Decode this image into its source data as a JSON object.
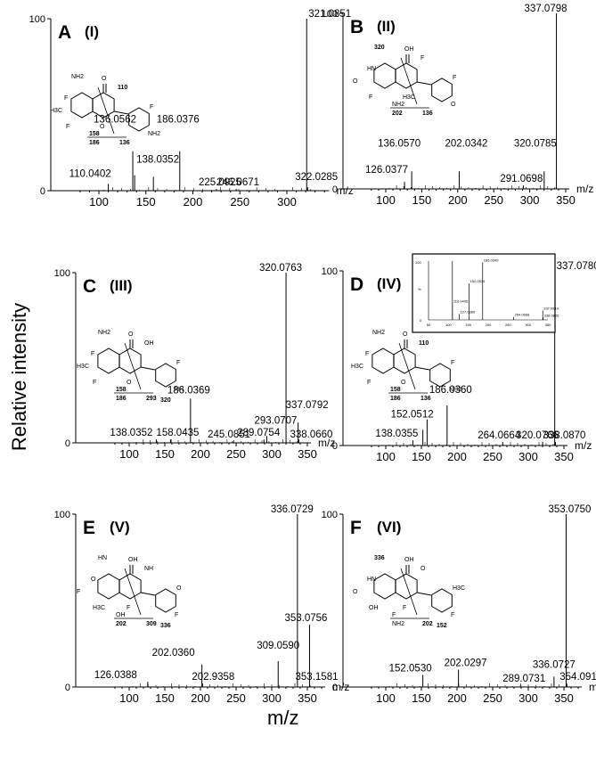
{
  "figure": {
    "y_axis_label": "Relative intensity",
    "x_axis_label": "m/z"
  },
  "chart_data": [
    {
      "type": "bar",
      "panel": "A",
      "compound": "(I)",
      "xlim": [
        75,
        345
      ],
      "ylim": [
        0,
        100
      ],
      "y_ticks": [
        0,
        100
      ],
      "x_ticks": [
        100,
        150,
        200,
        250,
        300
      ],
      "x_unit_label": "m/z",
      "peaks": [
        {
          "mz": 110.0402,
          "intensity": 4,
          "label": "110.0402"
        },
        {
          "mz": 136.0562,
          "intensity": 23,
          "label": "136.0562"
        },
        {
          "mz": 138.0352,
          "intensity": 9,
          "label": "138.0352"
        },
        {
          "mz": 158.0,
          "intensity": 8,
          "label": ""
        },
        {
          "mz": 186.0376,
          "intensity": 23,
          "label": "186.0376"
        },
        {
          "mz": 225.0925,
          "intensity": 1,
          "label": "225.0925"
        },
        {
          "mz": 246.0671,
          "intensity": 1,
          "label": "246.0671"
        },
        {
          "mz": 321.0851,
          "intensity": 100,
          "label": "321.0851"
        },
        {
          "mz": 322.0285,
          "intensity": 2,
          "label": "322.0285"
        }
      ],
      "structure_labels": [
        "NH2",
        "O",
        "F",
        "H3C",
        "F",
        "O",
        "F",
        "NH2",
        "110",
        "158",
        "186",
        "136"
      ]
    },
    {
      "type": "bar",
      "panel": "B",
      "compound": "(II)",
      "xlim": [
        75,
        355
      ],
      "ylim": [
        0,
        100
      ],
      "y_ticks": [
        0,
        100
      ],
      "x_ticks": [
        100,
        150,
        200,
        250,
        300,
        350
      ],
      "x_unit_label": "m/z",
      "peaks": [
        {
          "mz": 126.0377,
          "intensity": 4,
          "label": "126.0377"
        },
        {
          "mz": 136.057,
          "intensity": 10,
          "label": "136.0570"
        },
        {
          "mz": 202.0342,
          "intensity": 10,
          "label": "202.0342"
        },
        {
          "mz": 291.0698,
          "intensity": 2,
          "label": "291.0698"
        },
        {
          "mz": 320.0785,
          "intensity": 10,
          "label": "320.0785"
        },
        {
          "mz": 337.0798,
          "intensity": 100,
          "label": "337.0798"
        }
      ],
      "structure_labels": [
        "320",
        "OH",
        "HN",
        "O",
        "F",
        "H3C",
        "F",
        "O",
        "F",
        "NH2",
        "202",
        "136"
      ]
    },
    {
      "type": "bar",
      "panel": "C",
      "compound": "(III)",
      "xlim": [
        80,
        355
      ],
      "ylim": [
        0,
        100
      ],
      "y_ticks": [
        0,
        100
      ],
      "x_ticks": [
        100,
        150,
        200,
        250,
        300,
        350
      ],
      "x_unit_label": "m/z",
      "peaks": [
        {
          "mz": 138.0352,
          "intensity": 2,
          "label": "138.0352"
        },
        {
          "mz": 158.0435,
          "intensity": 2,
          "label": "158.0435"
        },
        {
          "mz": 186.0369,
          "intensity": 26,
          "label": "186.0369"
        },
        {
          "mz": 245.0851,
          "intensity": 1,
          "label": "245.0851"
        },
        {
          "mz": 289.0754,
          "intensity": 2,
          "label": "289.0754"
        },
        {
          "mz": 293.0707,
          "intensity": 4,
          "label": "293.0707"
        },
        {
          "mz": 320.0763,
          "intensity": 100,
          "label": "320.0763"
        },
        {
          "mz": 337.0792,
          "intensity": 12,
          "label": "337.0792"
        },
        {
          "mz": 338.066,
          "intensity": 2,
          "label": "338.0660"
        }
      ],
      "structure_labels": [
        "NH2",
        "O",
        "F",
        "H3C",
        "F",
        "O",
        "F",
        "NH",
        "OH",
        "158",
        "186",
        "293",
        "320"
      ]
    },
    {
      "type": "bar",
      "panel": "D",
      "compound": "(IV)",
      "xlim": [
        75,
        355
      ],
      "ylim": [
        0,
        100
      ],
      "y_ticks": [
        0,
        100
      ],
      "x_ticks": [
        100,
        150,
        200,
        250,
        300,
        350
      ],
      "x_unit_label": "m/z",
      "peaks": [
        {
          "mz": 138.0355,
          "intensity": 3,
          "label": "138.0355"
        },
        {
          "mz": 152.0512,
          "intensity": 9,
          "label": "152.0512"
        },
        {
          "mz": 158.0,
          "intensity": 15,
          "label": ""
        },
        {
          "mz": 186.036,
          "intensity": 23,
          "label": "186.0360"
        },
        {
          "mz": 264.0664,
          "intensity": 2,
          "label": "264.0664"
        },
        {
          "mz": 320.0766,
          "intensity": 2,
          "label": "320.0766"
        },
        {
          "mz": 337.078,
          "intensity": 100,
          "label": "337.0780"
        },
        {
          "mz": 338.087,
          "intensity": 2,
          "label": "338.0870"
        }
      ],
      "structure_labels": [
        "NH2",
        "O",
        "F",
        "H3C",
        "F",
        "O",
        "F",
        "NH2",
        "110",
        "158",
        "186",
        "136"
      ],
      "inset": {
        "xlim": [
          50,
          350
        ],
        "ylim": [
          0,
          100
        ],
        "y_ticks": [
          "100",
          "%",
          "0"
        ],
        "x_ticks": [
          50,
          100,
          150,
          200,
          250,
          300,
          350
        ],
        "peaks": [
          {
            "mz": 110.0,
            "intensity": 100,
            "label": ""
          },
          {
            "mz": 127.0389,
            "intensity": 10,
            "label": "127.0389"
          },
          {
            "mz": 110.0405,
            "intensity": 28,
            "label": "110.0405"
          },
          {
            "mz": 152.0534,
            "intensity": 62,
            "label": "152.0534"
          },
          {
            "mz": 186.0349,
            "intensity": 98,
            "label": "186.0349"
          },
          {
            "mz": 264.0668,
            "intensity": 5,
            "label": "264.0668"
          },
          {
            "mz": 337.0814,
            "intensity": 16,
            "label": "337.0814"
          },
          {
            "mz": 338.0826,
            "intensity": 4,
            "label": "338.0826"
          }
        ]
      }
    },
    {
      "type": "bar",
      "panel": "E",
      "compound": "(V)",
      "xlim": [
        75,
        375
      ],
      "ylim": [
        0,
        100
      ],
      "y_ticks": [
        0,
        100
      ],
      "x_ticks": [
        100,
        150,
        200,
        250,
        300,
        350
      ],
      "x_unit_label": "m/z",
      "peaks": [
        {
          "mz": 126.0388,
          "intensity": 3,
          "label": "126.0388"
        },
        {
          "mz": 202.036,
          "intensity": 13,
          "label": "202.0360"
        },
        {
          "mz": 202.9358,
          "intensity": 2,
          "label": "202.9358"
        },
        {
          "mz": 309.059,
          "intensity": 15,
          "label": "309.0590"
        },
        {
          "mz": 336.0729,
          "intensity": 100,
          "label": "336.0729"
        },
        {
          "mz": 353.0756,
          "intensity": 36,
          "label": "353.0756"
        },
        {
          "mz": 353.1581,
          "intensity": 2,
          "label": "353.1581"
        }
      ],
      "structure_labels": [
        "HN",
        "OH",
        "O",
        "F",
        "H3C",
        "F",
        "O",
        "F",
        "NH",
        "OH",
        "202",
        "309",
        "336"
      ]
    },
    {
      "type": "bar",
      "panel": "F",
      "compound": "(VI)",
      "xlim": [
        75,
        375
      ],
      "ylim": [
        0,
        100
      ],
      "y_ticks": [
        0,
        100
      ],
      "x_ticks": [
        100,
        150,
        200,
        250,
        300,
        350
      ],
      "x_unit_label": "m/z",
      "peaks": [
        {
          "mz": 152.053,
          "intensity": 7,
          "label": "152.0530"
        },
        {
          "mz": 202.0297,
          "intensity": 10,
          "label": "202.0297"
        },
        {
          "mz": 289.0731,
          "intensity": 1,
          "label": "289.0731"
        },
        {
          "mz": 336.0727,
          "intensity": 6,
          "label": "336.0727"
        },
        {
          "mz": 353.075,
          "intensity": 100,
          "label": "353.0750"
        },
        {
          "mz": 354.091,
          "intensity": 2,
          "label": "354.0910"
        }
      ],
      "structure_labels": [
        "336",
        "OH",
        "HN",
        "O",
        "OH",
        "F",
        "H3C",
        "F",
        "O",
        "F",
        "NH2",
        "202",
        "152"
      ]
    }
  ]
}
